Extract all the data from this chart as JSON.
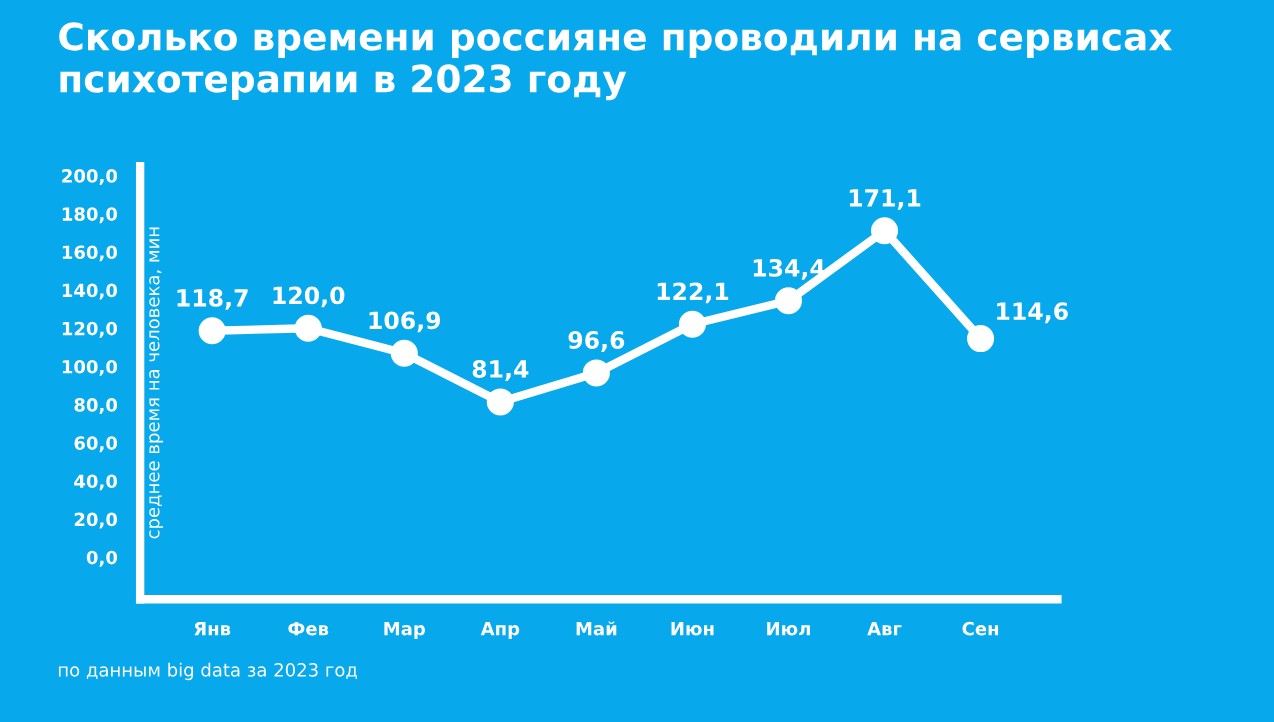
{
  "chart_data": {
    "type": "line",
    "title": "Сколько времени россияне проводили на сервисах\nпсихотерапии в 2023 году",
    "ylabel": "среднее время на человека, мин",
    "categories": [
      "Янв",
      "Фев",
      "Мар",
      "Апр",
      "Май",
      "Июн",
      "Июл",
      "Авг",
      "Сен"
    ],
    "series": [
      {
        "color": "#ffffff",
        "values": [
          118.7,
          120.0,
          106.9,
          81.4,
          96.6,
          122.1,
          134.4,
          171.1,
          114.6
        ],
        "value_labels": [
          "118,7",
          "120,0",
          "106,9",
          "81,4",
          "96,6",
          "122,1",
          "134,4",
          "171,1",
          "114,6"
        ]
      }
    ],
    "ylim": [
      -22,
      205
    ],
    "yticks": [
      {
        "value": 0,
        "label": "0,0"
      },
      {
        "value": 20,
        "label": "20,0"
      },
      {
        "value": 40,
        "label": "40,0"
      },
      {
        "value": 60,
        "label": "60,0"
      },
      {
        "value": 80,
        "label": "80,0"
      },
      {
        "value": 100,
        "label": "100,0"
      },
      {
        "value": 120,
        "label": "120,0"
      },
      {
        "value": 140,
        "label": "140,0"
      },
      {
        "value": 160,
        "label": "160,0"
      },
      {
        "value": 180,
        "label": "180,0"
      },
      {
        "value": 200,
        "label": "200,0"
      }
    ],
    "marker": "circle",
    "line_style": "solid",
    "grid": false,
    "legend": false,
    "annotations": [
      "по данным big data за 2023 год"
    ]
  }
}
